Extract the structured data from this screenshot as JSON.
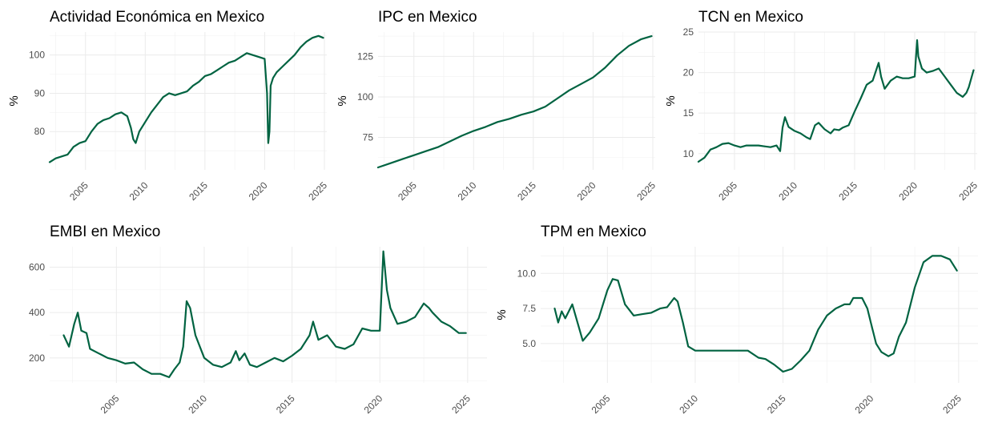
{
  "chart_data": [
    {
      "type": "line",
      "title": "Actividad Económica en Mexico",
      "ylabel": "%",
      "xlim": [
        2002,
        2025.2
      ],
      "ylim": [
        70,
        106
      ],
      "yticks": [
        80,
        90,
        100
      ],
      "xticks": [
        2005,
        2010,
        2015,
        2020,
        2025
      ],
      "series": [
        {
          "x": [
            2002.0,
            2002.5,
            2003.0,
            2003.5,
            2004.0,
            2004.5,
            2005.0,
            2005.5,
            2006.0,
            2006.5,
            2007.0,
            2007.5,
            2008.0,
            2008.5,
            2008.8,
            2009.0,
            2009.2,
            2009.5,
            2010.0,
            2010.5,
            2011.0,
            2011.5,
            2012.0,
            2012.5,
            2013.0,
            2013.5,
            2014.0,
            2014.5,
            2015.0,
            2015.5,
            2016.0,
            2016.5,
            2017.0,
            2017.5,
            2018.0,
            2018.5,
            2019.0,
            2019.5,
            2020.0,
            2020.2,
            2020.3,
            2020.4,
            2020.5,
            2020.7,
            2021.0,
            2021.5,
            2022.0,
            2022.5,
            2023.0,
            2023.5,
            2024.0,
            2024.5,
            2024.9
          ],
          "y": [
            72,
            73,
            73.5,
            74,
            76,
            77,
            77.5,
            80,
            82,
            83,
            83.5,
            84.5,
            85,
            84,
            81,
            78,
            77,
            80,
            82.5,
            85,
            87,
            89,
            90,
            89.5,
            90,
            90.5,
            92,
            93,
            94.5,
            95,
            96,
            97,
            98,
            98.5,
            99.5,
            100.5,
            100,
            99.5,
            99,
            90,
            77,
            80,
            92,
            94,
            95.5,
            97,
            98.5,
            100,
            102,
            103.5,
            104.5,
            105,
            104.5
          ]
        }
      ]
    },
    {
      "type": "line",
      "title": "IPC en Mexico",
      "ylabel": "%",
      "xlim": [
        2002,
        2025.2
      ],
      "ylim": [
        55,
        140
      ],
      "yticks": [
        75,
        100,
        125
      ],
      "xticks": [
        2005,
        2010,
        2015,
        2020,
        2025
      ],
      "series": [
        {
          "x": [
            2002,
            2003,
            2004,
            2005,
            2006,
            2007,
            2008,
            2009,
            2010,
            2011,
            2012,
            2013,
            2014,
            2015,
            2016,
            2017,
            2018,
            2019,
            2020,
            2021,
            2022,
            2023,
            2024,
            2024.9
          ],
          "y": [
            56.5,
            59,
            61.5,
            64,
            66.5,
            69,
            72.5,
            76,
            79,
            81.5,
            84.5,
            86.5,
            89,
            91,
            94,
            99,
            104,
            108,
            112,
            118,
            125.5,
            131.5,
            135.5,
            137.5
          ]
        }
      ]
    },
    {
      "type": "line",
      "title": "TCN en Mexico",
      "ylabel": "%",
      "xlim": [
        2002,
        2025.2
      ],
      "ylim": [
        8,
        25
      ],
      "yticks": [
        10,
        15,
        20,
        25
      ],
      "xticks": [
        2005,
        2010,
        2015,
        2020,
        2025
      ],
      "series": [
        {
          "x": [
            2002.0,
            2002.5,
            2003.0,
            2003.5,
            2004.0,
            2004.5,
            2005.0,
            2005.5,
            2006.0,
            2006.5,
            2007.0,
            2007.5,
            2008.0,
            2008.5,
            2008.8,
            2009.0,
            2009.2,
            2009.5,
            2010.0,
            2010.5,
            2011.0,
            2011.3,
            2011.7,
            2012.0,
            2012.5,
            2013.0,
            2013.3,
            2013.7,
            2014.0,
            2014.5,
            2015.0,
            2015.5,
            2016.0,
            2016.5,
            2017.0,
            2017.2,
            2017.5,
            2018.0,
            2018.5,
            2019.0,
            2019.5,
            2020.0,
            2020.2,
            2020.3,
            2020.6,
            2021.0,
            2021.5,
            2022.0,
            2022.5,
            2023.0,
            2023.5,
            2024.0,
            2024.3,
            2024.5,
            2024.9
          ],
          "y": [
            9,
            9.5,
            10.5,
            10.8,
            11.2,
            11.3,
            11,
            10.8,
            11,
            11,
            11,
            10.9,
            10.8,
            11,
            10.3,
            13.2,
            14.5,
            13.3,
            12.8,
            12.5,
            12,
            11.8,
            13.5,
            13.8,
            13,
            12.5,
            13,
            12.9,
            13.2,
            13.5,
            15.2,
            16.8,
            18.5,
            19,
            21.2,
            19.5,
            18,
            19,
            19.5,
            19.3,
            19.3,
            19.5,
            24,
            22,
            20.5,
            20,
            20.2,
            20.5,
            19.5,
            18.5,
            17.5,
            17,
            17.5,
            18.2,
            20.3
          ]
        }
      ]
    },
    {
      "type": "line",
      "title": "EMBI en Mexico",
      "ylabel": "",
      "xlim": [
        2001.2,
        2026.1
      ],
      "ylim": [
        90,
        690
      ],
      "yticks": [
        200,
        400,
        600
      ],
      "xticks": [
        2005,
        2010,
        2015,
        2020,
        2025
      ],
      "series": [
        {
          "x": [
            2002.0,
            2002.3,
            2002.6,
            2002.8,
            2003.0,
            2003.3,
            2003.5,
            2004.0,
            2004.5,
            2005.0,
            2005.5,
            2006.0,
            2006.5,
            2007.0,
            2007.5,
            2008.0,
            2008.3,
            2008.6,
            2008.8,
            2009.0,
            2009.2,
            2009.5,
            2010.0,
            2010.5,
            2011.0,
            2011.5,
            2011.8,
            2012.0,
            2012.3,
            2012.6,
            2013.0,
            2013.5,
            2014.0,
            2014.5,
            2015.0,
            2015.5,
            2016.0,
            2016.2,
            2016.5,
            2017.0,
            2017.5,
            2018.0,
            2018.5,
            2019.0,
            2019.5,
            2020.0,
            2020.2,
            2020.4,
            2020.6,
            2021.0,
            2021.5,
            2022.0,
            2022.5,
            2022.8,
            2023.0,
            2023.5,
            2024.0,
            2024.5,
            2024.9
          ],
          "y": [
            300,
            250,
            350,
            400,
            320,
            310,
            240,
            220,
            200,
            190,
            175,
            180,
            150,
            130,
            130,
            115,
            150,
            180,
            250,
            450,
            420,
            300,
            200,
            170,
            160,
            180,
            230,
            190,
            220,
            170,
            160,
            180,
            200,
            185,
            210,
            240,
            300,
            360,
            280,
            300,
            250,
            240,
            260,
            330,
            320,
            320,
            670,
            500,
            420,
            350,
            360,
            380,
            440,
            420,
            400,
            360,
            340,
            310,
            310
          ]
        }
      ]
    },
    {
      "type": "line",
      "title": "TPM en Mexico",
      "ylabel": "%",
      "xlim": [
        2001.2,
        2026.1
      ],
      "ylim": [
        2.2,
        11.9
      ],
      "yticks": [
        5,
        7.5,
        10
      ],
      "xticks": [
        2005,
        2010,
        2015,
        2020,
        2025
      ],
      "series": [
        {
          "x": [
            2002.0,
            2002.2,
            2002.4,
            2002.6,
            2003.0,
            2003.3,
            2003.6,
            2004.0,
            2004.5,
            2005.0,
            2005.3,
            2005.6,
            2006.0,
            2006.5,
            2007.0,
            2007.5,
            2008.0,
            2008.4,
            2008.8,
            2009.0,
            2009.3,
            2009.6,
            2010.0,
            2011.0,
            2012.0,
            2013.0,
            2013.6,
            2014.0,
            2014.5,
            2015.0,
            2015.5,
            2016.0,
            2016.5,
            2017.0,
            2017.5,
            2018.0,
            2018.5,
            2018.8,
            2019.0,
            2019.5,
            2019.8,
            2020.0,
            2020.3,
            2020.6,
            2021.0,
            2021.3,
            2021.6,
            2022.0,
            2022.5,
            2023.0,
            2023.5,
            2024.0,
            2024.5,
            2024.9
          ],
          "y": [
            7.5,
            6.5,
            7.3,
            6.8,
            7.8,
            6.5,
            5.2,
            5.8,
            6.8,
            8.8,
            9.6,
            9.5,
            7.8,
            7,
            7.1,
            7.2,
            7.5,
            7.6,
            8.25,
            8,
            6.5,
            4.8,
            4.5,
            4.5,
            4.5,
            4.5,
            4,
            3.9,
            3.5,
            3,
            3.2,
            3.8,
            4.5,
            6,
            7,
            7.5,
            7.8,
            7.8,
            8.25,
            8.25,
            7.5,
            6.5,
            5,
            4.4,
            4.1,
            4.3,
            5.5,
            6.5,
            9,
            10.8,
            11.25,
            11.25,
            11,
            10.2
          ]
        }
      ]
    }
  ],
  "colors": {
    "line": "#006341",
    "grid": "#ebebeb"
  }
}
